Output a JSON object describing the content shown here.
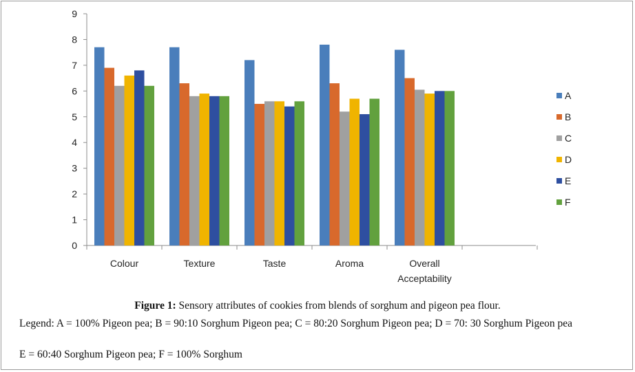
{
  "chart_data": {
    "type": "bar",
    "categories": [
      "Colour",
      "Texture",
      "Taste",
      "Aroma",
      "Overall Acceptability"
    ],
    "category_lines": [
      [
        "Colour"
      ],
      [
        "Texture"
      ],
      [
        "Taste"
      ],
      [
        "Aroma"
      ],
      [
        "Overall",
        "Acceptability"
      ]
    ],
    "series": [
      {
        "name": "A",
        "color": "#4a7ebb",
        "values": [
          7.7,
          7.7,
          7.2,
          7.8,
          7.6
        ]
      },
      {
        "name": "B",
        "color": "#d8692c",
        "values": [
          6.9,
          6.3,
          5.5,
          6.3,
          6.5
        ]
      },
      {
        "name": "C",
        "color": "#a0a0a0",
        "values": [
          6.2,
          5.8,
          5.6,
          5.2,
          6.05
        ]
      },
      {
        "name": "D",
        "color": "#f0b400",
        "values": [
          6.6,
          5.9,
          5.6,
          5.7,
          5.9
        ]
      },
      {
        "name": "E",
        "color": "#2e4fa0",
        "values": [
          6.8,
          5.8,
          5.4,
          5.1,
          6.0
        ]
      },
      {
        "name": "F",
        "color": "#62a13e",
        "values": [
          6.2,
          5.8,
          5.6,
          5.7,
          6.0
        ]
      }
    ],
    "yticks": [
      "0",
      "1",
      "2",
      "3",
      "4",
      "5",
      "6",
      "7",
      "8",
      "9"
    ],
    "ylim": [
      0,
      9
    ],
    "legend_position": "right",
    "grid": false
  },
  "caption": {
    "label": "Figure 1:",
    "text": " Sensory attributes of cookies from blends of sorghum and pigeon pea flour."
  },
  "legend_note": {
    "line1": "Legend: A = 100% Pigeon pea; B = 90:10 Sorghum Pigeon pea; C = 80:20 Sorghum Pigeon pea; D = 70: 30 Sorghum Pigeon pea",
    "line2": "E = 60:40 Sorghum Pigeon pea; F = 100% Sorghum"
  }
}
